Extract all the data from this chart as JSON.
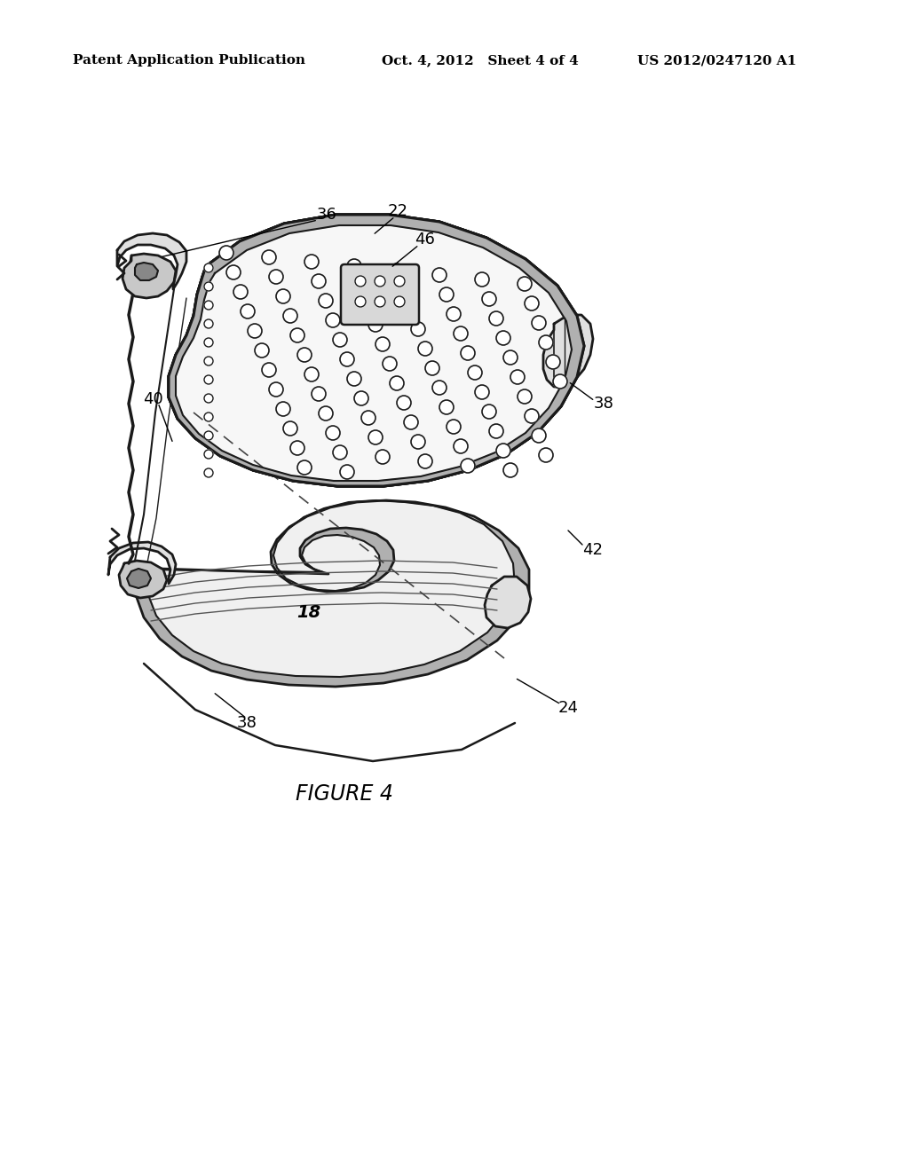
{
  "background_color": "#ffffff",
  "header_left": "Patent Application Publication",
  "header_center": "Oct. 4, 2012   Sheet 4 of 4",
  "header_right": "US 2012/0247120 A1",
  "figure_label": "FIGURE 4",
  "line_color": "#1a1a1a",
  "text_color": "#000000",
  "header_fontsize": 11,
  "label_fontsize": 13,
  "figure_label_fontsize": 17
}
